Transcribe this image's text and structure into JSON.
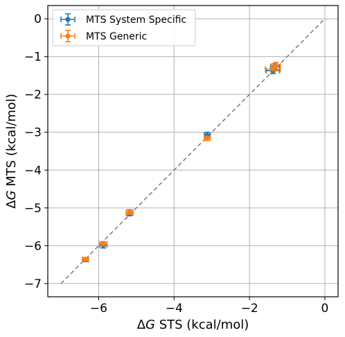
{
  "chart_data": {
    "type": "scatter",
    "xlabel_main": "STS (kcal/mol)",
    "ylabel_main": "MTS (kcal/mol)",
    "label_prefix_delta": "Δ",
    "label_prefix_g": "G",
    "xlim": [
      -7.35,
      0.35
    ],
    "ylim": [
      -7.35,
      0.35
    ],
    "xticks": [
      -6,
      -4,
      -2,
      0
    ],
    "yticks": [
      0,
      -1,
      -2,
      -3,
      -4,
      -5,
      -6,
      -7
    ],
    "xtick_labels": [
      "−6",
      "−4",
      "−2",
      "0"
    ],
    "ytick_labels": [
      "0",
      "−1",
      "−2",
      "−3",
      "−4",
      "−5",
      "−6",
      "−7"
    ],
    "grid": true,
    "legend_position": "top-left",
    "identity_line": {
      "from": [
        -7,
        -7
      ],
      "to": [
        0,
        0
      ],
      "color": "#808080",
      "style": "dashed"
    },
    "series": [
      {
        "name": "MTS System Specific",
        "color": "#1f77b4",
        "points": [
          {
            "x": -6.35,
            "y": -6.37,
            "xerr": 0.08,
            "yerr": 0.05
          },
          {
            "x": -5.88,
            "y": -5.98,
            "xerr": 0.1,
            "yerr": 0.08
          },
          {
            "x": -5.18,
            "y": -5.13,
            "xerr": 0.09,
            "yerr": 0.08
          },
          {
            "x": -3.12,
            "y": -3.08,
            "xerr": 0.08,
            "yerr": 0.08
          },
          {
            "x": -1.38,
            "y": -1.37,
            "xerr": 0.18,
            "yerr": 0.08
          },
          {
            "x": -1.32,
            "y": -1.27,
            "xerr": 0.12,
            "yerr": 0.08
          }
        ]
      },
      {
        "name": "MTS Generic",
        "color": "#ff7f0e",
        "points": [
          {
            "x": -6.35,
            "y": -6.36,
            "xerr": 0.08,
            "yerr": 0.05
          },
          {
            "x": -5.88,
            "y": -5.95,
            "xerr": 0.1,
            "yerr": 0.06
          },
          {
            "x": -5.18,
            "y": -5.12,
            "xerr": 0.09,
            "yerr": 0.06
          },
          {
            "x": -3.12,
            "y": -3.15,
            "xerr": 0.08,
            "yerr": 0.07
          },
          {
            "x": -1.38,
            "y": -1.33,
            "xerr": 0.2,
            "yerr": 0.1
          },
          {
            "x": -1.3,
            "y": -1.25,
            "xerr": 0.12,
            "yerr": 0.1
          }
        ]
      }
    ]
  }
}
